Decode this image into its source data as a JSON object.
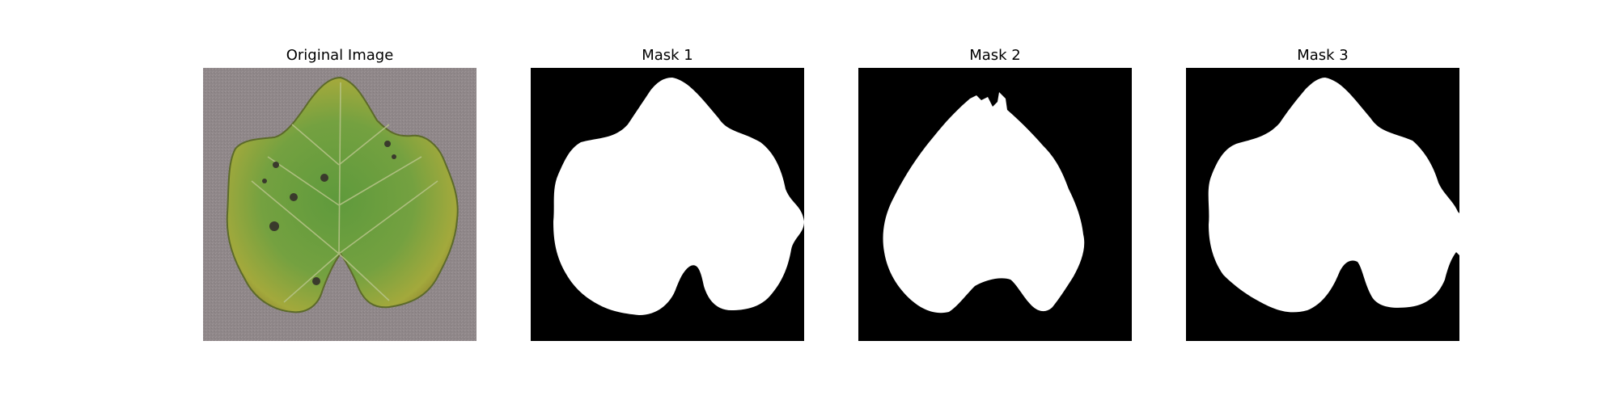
{
  "figure": {
    "panels": [
      {
        "title": "Original Image",
        "kind": "photo",
        "subject": "leaf-photo"
      },
      {
        "title": "Mask 1",
        "kind": "mask"
      },
      {
        "title": "Mask 2",
        "kind": "mask"
      },
      {
        "title": "Mask 3",
        "kind": "mask"
      }
    ]
  },
  "colors": {
    "background": "#ffffff",
    "mask_background": "#000000",
    "mask_foreground": "#ffffff",
    "leaf_green": "#6a9a3a",
    "leaf_yellow": "#b0a840",
    "photo_background": "#8f8789"
  }
}
